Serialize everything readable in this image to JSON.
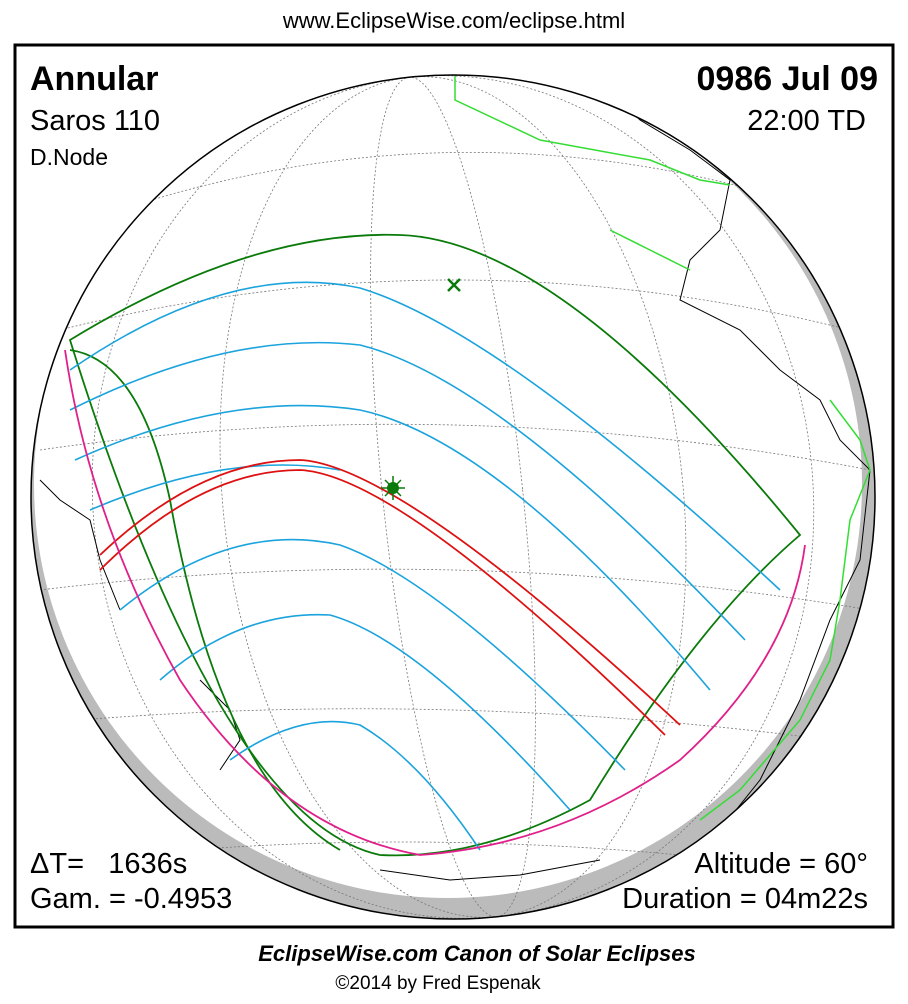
{
  "header": {
    "url": "www.EclipseWise.com/eclipse.html"
  },
  "panel": {
    "top_left": {
      "eclipse_type": "Annular",
      "saros": "Saros 110",
      "node": "D.Node"
    },
    "top_right": {
      "date": "0986 Jul 09",
      "time": "22:00 TD"
    },
    "bottom_left": {
      "delta_t": "ΔT=   1636s",
      "gamma": "Gam. = -0.4953"
    },
    "bottom_right": {
      "altitude": "Altitude = 60°",
      "duration": "Duration = 04m22s"
    }
  },
  "footer": {
    "title": "EclipseWise.com Canon of Solar Eclipses",
    "credit": "©2014 by Fred Espenak"
  }
}
